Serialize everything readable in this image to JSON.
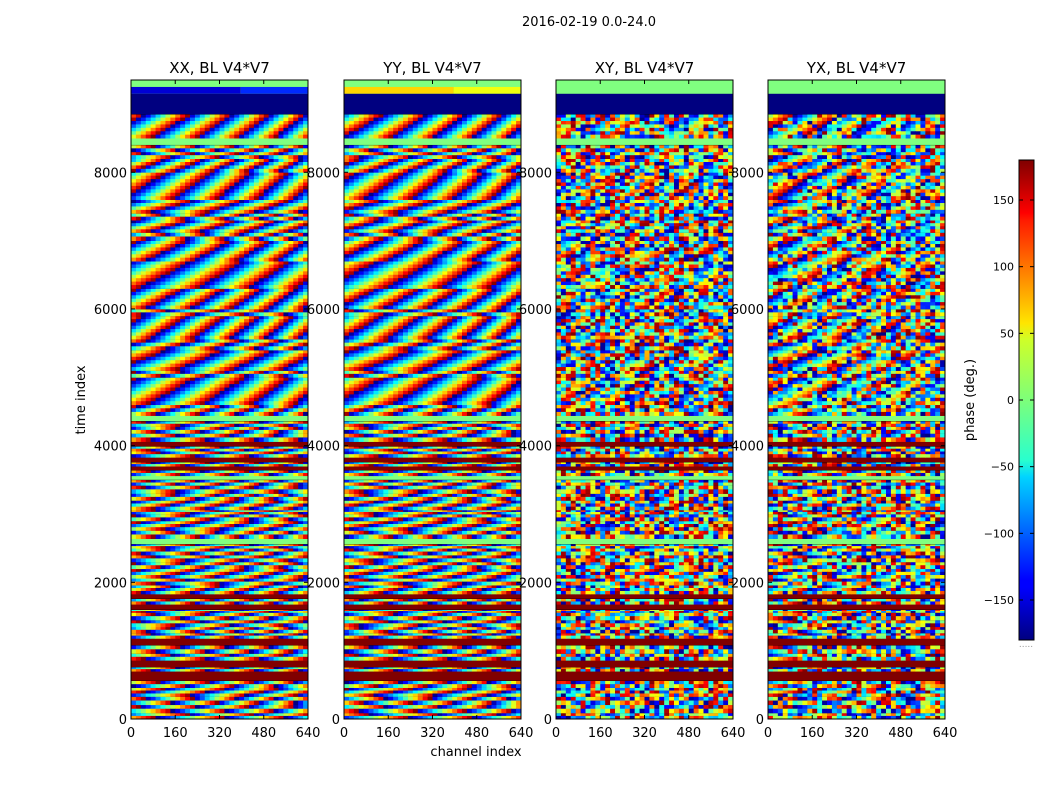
{
  "figure": {
    "suptitle": "2016-02-19 0.0-24.0"
  },
  "chart_data": {
    "type": "heatmap",
    "suptitle": "2016-02-19 0.0-24.0",
    "xlabel": "channel index",
    "ylabel": "time index",
    "xlim": [
      0,
      640
    ],
    "ylim": [
      0,
      9350
    ],
    "x_ticks": [
      "0",
      "160",
      "320",
      "480",
      "640"
    ],
    "y_ticks": [
      "0",
      "2000",
      "4000",
      "6000",
      "8000"
    ],
    "colormap": "jet",
    "colorbar": {
      "label": "phase (deg.)",
      "range": [
        -180,
        180
      ],
      "ticks": [
        "150",
        "100",
        "50",
        "0",
        "−50",
        "−100",
        "−150"
      ],
      "footnote": "....."
    },
    "panels": [
      {
        "title": "XX, BL V4*V7",
        "pattern": "fringe",
        "header_value": -150,
        "header_alt": -120
      },
      {
        "title": "YY, BL V4*V7",
        "pattern": "fringe",
        "header_value": 60,
        "header_alt": 40
      },
      {
        "title": "XY, BL V4*V7",
        "pattern": "noisy",
        "header_value": 0,
        "header_alt": 0
      },
      {
        "title": "YX, BL V4*V7",
        "pattern": "mixed",
        "header_value": 0,
        "header_alt": 0
      }
    ]
  }
}
